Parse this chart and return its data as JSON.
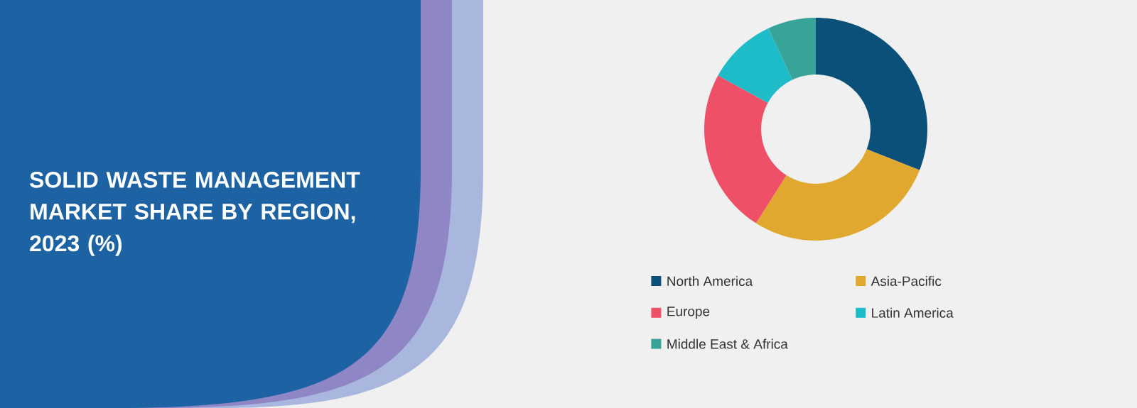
{
  "chart_data": {
    "type": "donut",
    "title": "SOLID WASTE MANAGEMENT MARKET SHARE BY REGION, 2023 (%)",
    "categories": [
      "North America",
      "Asia-Pacific",
      "Europe",
      "Latin America",
      "Middle East & Africa"
    ],
    "values": [
      31,
      28,
      24,
      10,
      7
    ],
    "colors": [
      "#0b5079",
      "#e0a82e",
      "#ee5068",
      "#1dbcc8",
      "#38a398"
    ],
    "legend": "bottom"
  }
}
